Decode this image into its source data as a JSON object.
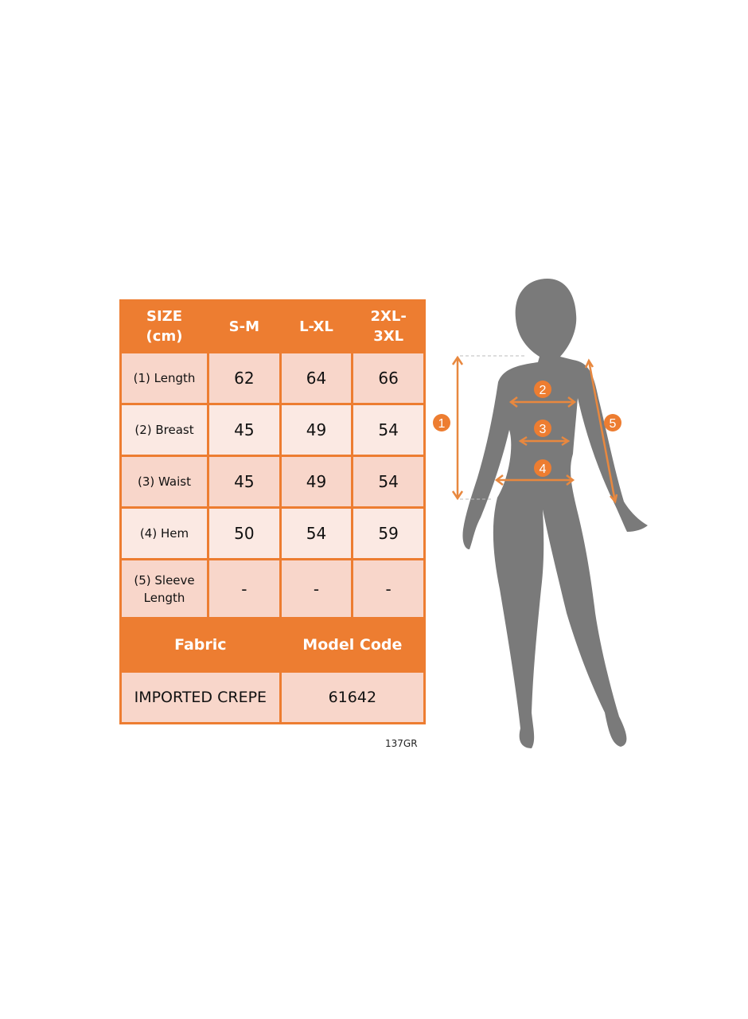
{
  "table": {
    "header": [
      "SIZE (cm)",
      "S-M",
      "L-XL",
      "2XL-3XL"
    ],
    "header_lines": [
      [
        "SIZE",
        "(cm)"
      ],
      [
        "S-M"
      ],
      [
        "L-XL"
      ],
      [
        "2XL-",
        "3XL"
      ]
    ],
    "rows": [
      {
        "label": "(1) Length",
        "values": [
          "62",
          "64",
          "66"
        ]
      },
      {
        "label": "(2) Breast",
        "values": [
          "45",
          "49",
          "54"
        ]
      },
      {
        "label": "(3) Waist",
        "values": [
          "45",
          "49",
          "54"
        ]
      },
      {
        "label": "(4) Hem",
        "values": [
          "50",
          "54",
          "59"
        ]
      },
      {
        "label_lines": [
          "(5) Sleeve",
          "Length"
        ],
        "values": [
          "-",
          "-",
          "-"
        ]
      }
    ],
    "fabric_label": "Fabric",
    "model_code_label": "Model Code",
    "fabric_value": "IMPORTED CREPE",
    "model_code_value": "61642"
  },
  "code": "137GR",
  "markers": [
    "1",
    "2",
    "3",
    "4",
    "5"
  ],
  "colors": {
    "accent": "#ed7d31",
    "row_dark": "#f8d6ca",
    "row_light": "#fbe9e3",
    "silhouette": "#7a7a7a"
  }
}
